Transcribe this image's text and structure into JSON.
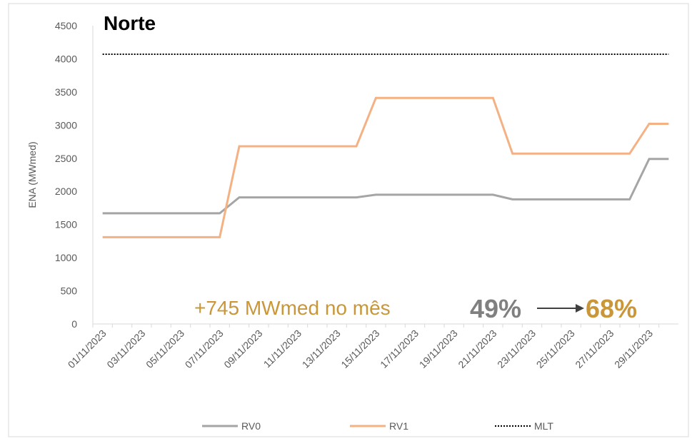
{
  "chart_data": {
    "type": "line",
    "title": "Norte",
    "y_label": "ENA (MWmed)",
    "categories": [
      "01/11/2023",
      null,
      "03/11/2023",
      null,
      "05/11/2023",
      null,
      "07/11/2023",
      null,
      "09/11/2023",
      null,
      "11/11/2023",
      null,
      "13/11/2023",
      null,
      "15/11/2023",
      null,
      "17/11/2023",
      null,
      "19/11/2023",
      null,
      "21/11/2023",
      null,
      "23/11/2023",
      null,
      "25/11/2023",
      null,
      "27/11/2023",
      null,
      "29/11/2023",
      null
    ],
    "series": [
      {
        "name": "RV0",
        "color": "#a5a5a5",
        "dash": "solid",
        "values": [
          1670,
          1670,
          1670,
          1670,
          1670,
          1670,
          1670,
          1910,
          1910,
          1910,
          1910,
          1910,
          1910,
          1910,
          1950,
          1950,
          1950,
          1950,
          1950,
          1950,
          1950,
          1880,
          1880,
          1880,
          1880,
          1880,
          1880,
          1880,
          2490,
          2490
        ]
      },
      {
        "name": "RV1",
        "color": "#f4b183",
        "dash": "solid",
        "values": [
          1310,
          1310,
          1310,
          1310,
          1310,
          1310,
          1310,
          2680,
          2680,
          2680,
          2680,
          2680,
          2680,
          2680,
          3410,
          3410,
          3410,
          3410,
          3410,
          3410,
          3410,
          2570,
          2570,
          2570,
          2570,
          2570,
          2570,
          2570,
          3020,
          3020
        ]
      },
      {
        "name": "MLT",
        "color": "#000000",
        "dash": "dotted",
        "values": [
          4070,
          4070,
          4070,
          4070,
          4070,
          4070,
          4070,
          4070,
          4070,
          4070,
          4070,
          4070,
          4070,
          4070,
          4070,
          4070,
          4070,
          4070,
          4070,
          4070,
          4070,
          4070,
          4070,
          4070,
          4070,
          4070,
          4070,
          4070,
          4070,
          4070
        ]
      }
    ],
    "ylim": [
      0,
      4500
    ],
    "yticks": [
      0,
      500,
      1000,
      1500,
      2000,
      2500,
      3000,
      3500,
      4000,
      4500
    ],
    "grid": false,
    "legend": "bottom",
    "annotations": {
      "delta": "+745 MWmed no mês",
      "from": "49%",
      "to": "68%"
    }
  }
}
